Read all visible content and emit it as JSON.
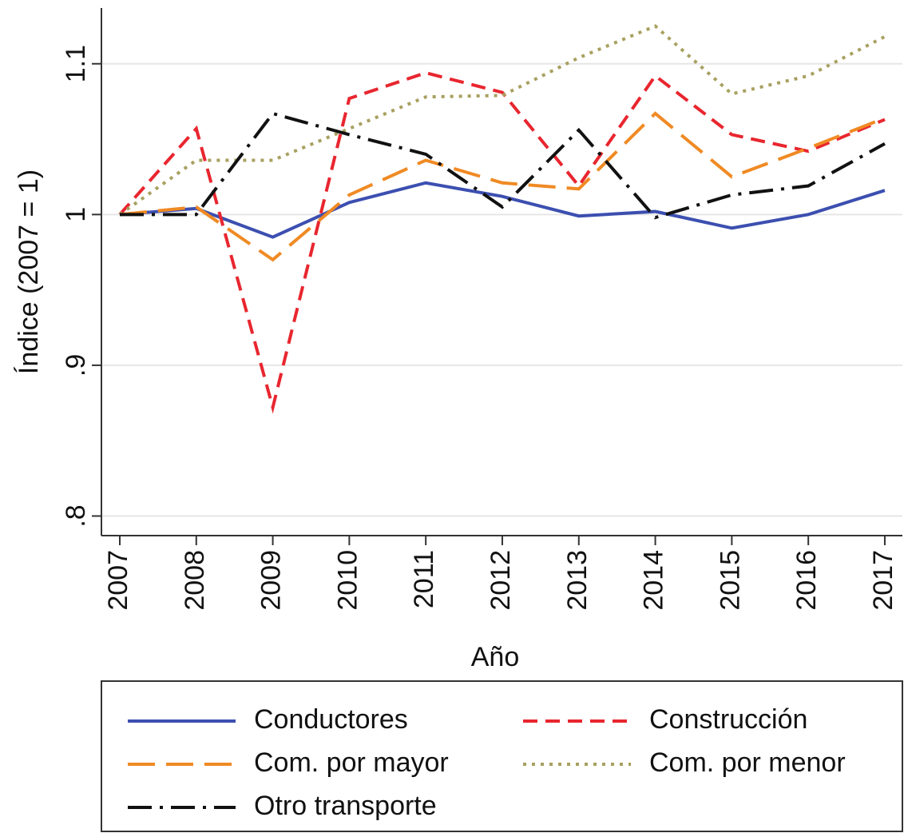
{
  "chart_data": {
    "type": "line",
    "x_label": "Año",
    "y_label": "Índice (2007 = 1)",
    "x": [
      2007,
      2008,
      2009,
      2010,
      2011,
      2012,
      2013,
      2014,
      2015,
      2016,
      2017
    ],
    "xlim": [
      2006.76,
      2017.23
    ],
    "xticks": [
      2007,
      2008,
      2009,
      2010,
      2011,
      2012,
      2013,
      2014,
      2015,
      2016,
      2017
    ],
    "ylim": [
      0.787,
      1.137
    ],
    "yticks": [
      {
        "value": 0.8,
        "label": ".8"
      },
      {
        "value": 0.9,
        "label": ".9"
      },
      1,
      1.1
    ],
    "grid": true,
    "legend": "bottom",
    "series": [
      {
        "name": "Conductores",
        "color": "#3c4fb0",
        "style": "solid",
        "values": [
          1.0,
          1.004,
          0.985,
          1.008,
          1.021,
          1.012,
          0.999,
          1.002,
          0.991,
          1.0,
          1.016
        ]
      },
      {
        "name": "Construcción",
        "color": "#e8262f",
        "style": "dashed",
        "values": [
          1.0,
          1.057,
          0.872,
          1.077,
          1.094,
          1.081,
          1.019,
          1.092,
          1.053,
          1.042,
          1.063
        ]
      },
      {
        "name": "Com. por mayor",
        "color": "#f08a24",
        "style": "longdash",
        "values": [
          1.0,
          1.005,
          0.97,
          1.013,
          1.036,
          1.021,
          1.017,
          1.067,
          1.025,
          1.044,
          1.064
        ]
      },
      {
        "name": "Com. por menor",
        "color": "#a8a060",
        "style": "dotted",
        "values": [
          1.0,
          1.036,
          1.036,
          1.057,
          1.078,
          1.079,
          1.104,
          1.125,
          1.08,
          1.092,
          1.118
        ]
      },
      {
        "name": "Otro transporte",
        "color": "#111111",
        "style": "dashdot",
        "values": [
          1.0,
          1.0,
          1.067,
          1.053,
          1.04,
          1.005,
          1.056,
          0.998,
          1.013,
          1.019,
          1.047
        ]
      }
    ]
  }
}
